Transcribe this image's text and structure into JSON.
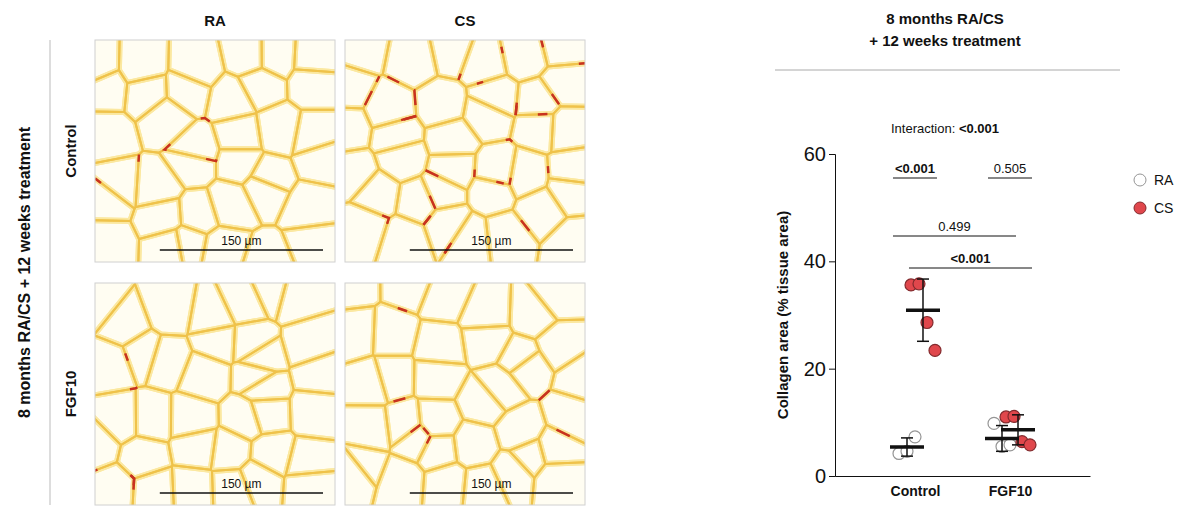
{
  "figure": {
    "side_label": "8 months RA/CS + 12 weeks treatment",
    "columns": [
      "RA",
      "CS"
    ],
    "rows": [
      "Control",
      "FGF10"
    ],
    "scale_bar": "150 µm"
  },
  "chart_data": {
    "type": "scatter",
    "title": "8 months RA/CS\n+ 12 weeks treatment",
    "y_label": "Collagen area (% tissue area)",
    "annotation": "Interaction: <0.001",
    "categories": [
      "Control",
      "FGF10"
    ],
    "ylim": [
      0,
      60
    ],
    "yticks": [
      0,
      20,
      40,
      60
    ],
    "legend": "right",
    "series": [
      {
        "name": "RA",
        "color": "#ffffff",
        "marker": "circle",
        "values": [
          [
            4.2,
            4.6,
            7.3
          ],
          [
            9.8,
            5.5,
            5.8
          ]
        ],
        "means": [
          5.4,
          7.0
        ],
        "errors": [
          1.7,
          2.4
        ]
      },
      {
        "name": "CS",
        "color": "#e0474c",
        "marker": "circle",
        "values": [
          [
            35.6,
            35.8,
            28.6,
            23.4
          ],
          [
            11.0,
            11.1,
            6.4,
            5.8
          ]
        ],
        "means": [
          30.9,
          8.6
        ],
        "errors": [
          5.8,
          2.8
        ]
      }
    ],
    "comparisons": [
      {
        "label": "<0.001",
        "a": [
          "Control",
          "RA"
        ],
        "b": [
          "Control",
          "CS"
        ]
      },
      {
        "label": "0.505",
        "a": [
          "FGF10",
          "RA"
        ],
        "b": [
          "FGF10",
          "CS"
        ]
      },
      {
        "label": "0.499",
        "a": [
          "Control",
          "RA"
        ],
        "b": [
          "FGF10",
          "RA"
        ]
      },
      {
        "label": "<0.001",
        "a": [
          "Control",
          "CS"
        ],
        "b": [
          "FGF10",
          "CS"
        ]
      }
    ]
  }
}
